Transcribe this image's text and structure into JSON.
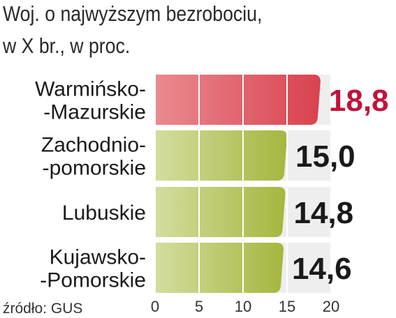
{
  "title_lines": [
    "Woj. o najwyższym bezrobociu,",
    "w X br., w proc."
  ],
  "source": "źródło: GUS",
  "colors": {
    "highlight_bar": "#d9424f",
    "highlight_bar_light": "#ea8a8f",
    "highlight_value": "#c0143c",
    "bar": "#a6b63e",
    "bar_light": "#d4dda0",
    "value": "#1a1a1a",
    "track": "#eeeeee"
  },
  "chart_data": {
    "type": "bar",
    "orientation": "horizontal",
    "title": "Woj. o najwyższym bezrobociu, w X br., w proc.",
    "categories": [
      [
        "Warmińsko-",
        "-Mazurskie"
      ],
      [
        "Zachodnio-",
        "-pomorskie"
      ],
      [
        "Lubuskie"
      ],
      [
        "Kujawsko-",
        "-Pomorskie"
      ]
    ],
    "values": [
      18.8,
      15.0,
      14.8,
      14.6
    ],
    "value_labels": [
      "18,8",
      "15,0",
      "14,8",
      "14,6"
    ],
    "highlight_index": 0,
    "xlim": [
      0,
      20
    ],
    "xticks": [
      0,
      5,
      10,
      15,
      20
    ],
    "grid": true
  }
}
